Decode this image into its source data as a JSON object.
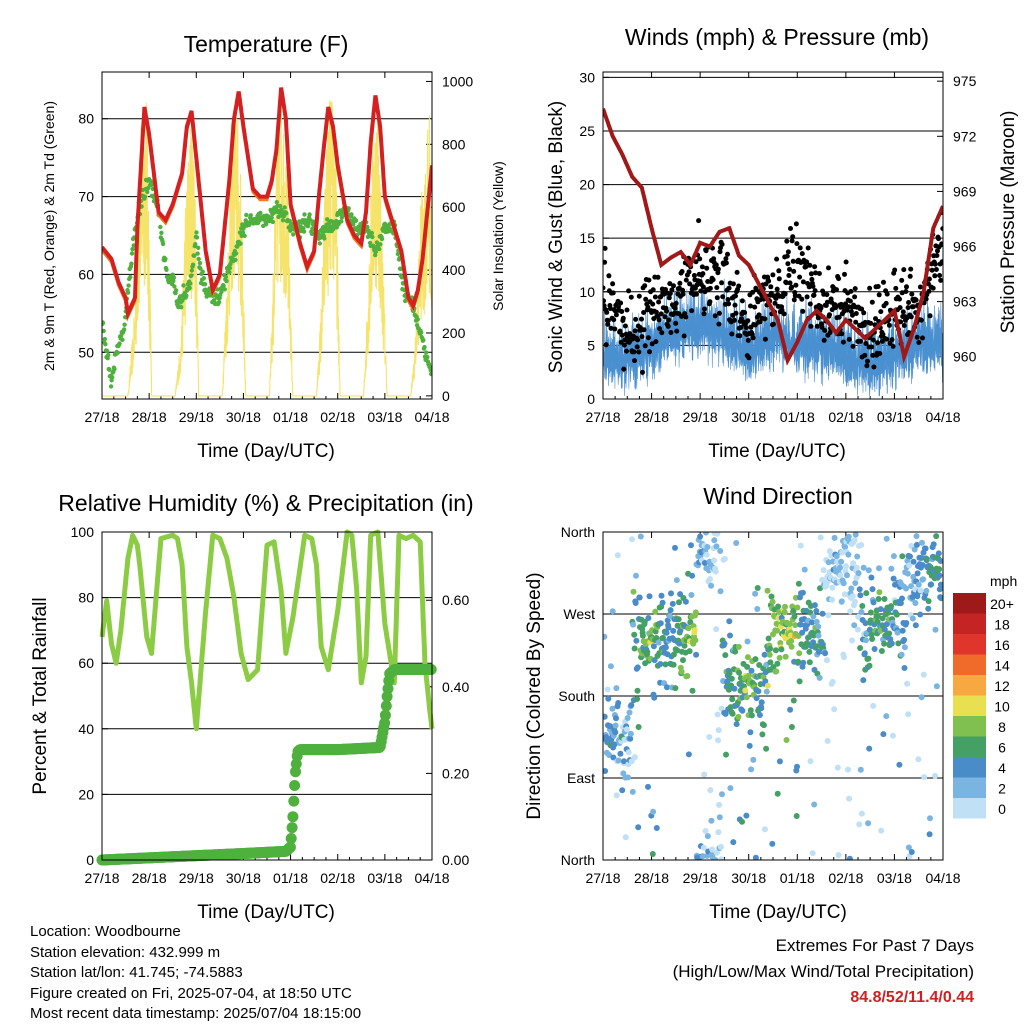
{
  "panels": {
    "temperature": {
      "title": "Temperature (F)",
      "left_label": "2m & 9m T (Red, Orange) & 2m Td (Green)",
      "right_label": "Solar Insolation (Yellow)",
      "x_label": "Time (Day/UTC)"
    },
    "winds": {
      "title": "Winds (mph) & Pressure (mb)",
      "left_label": "Sonic Wind & Gust (Blue, Black)",
      "right_label": "Station Pressure (Maroon)",
      "x_label": "Time (Day/UTC)"
    },
    "humidity": {
      "title": "Relative Humidity (%) & Precipitation (in)",
      "left_label": "Percent & Total Rainfall",
      "x_label": "Time (Day/UTC)"
    },
    "direction": {
      "title": "Wind Direction",
      "left_label": "Direction (Colored By Speed)",
      "x_label": "Time (Day/UTC)",
      "legend_title": "mph"
    }
  },
  "info": {
    "location": "Location: Woodbourne",
    "elevation": "Station elevation: 432.999 m",
    "latlon": "Station lat/lon: 41.745; -74.5883",
    "created": "Figure created on Fri, 2025-07-04, at 18:50 UTC",
    "timestamp": "Most recent data timestamp: 2025/07/04 18:15:00"
  },
  "extremes": {
    "line1": "Extremes For Past 7 Days",
    "line2": "(High/Low/Max Wind/Total Precipitation)",
    "values": "84.8/52/11.4/0.44"
  },
  "colors": {
    "temp": "#d42020",
    "temp9m": "#f07a1e",
    "dewpoint": "#4fb03e",
    "solar": "#f5e36a",
    "gust": "#000000",
    "wind": "#4a90d0",
    "pressure": "#a01818",
    "rh": "#8ccc44",
    "precip": "#4fb03e"
  },
  "chart_data": [
    {
      "type": "line",
      "title": "Temperature (F)",
      "x_ticks": [
        "27/18",
        "28/18",
        "29/18",
        "30/18",
        "01/18",
        "02/18",
        "03/18",
        "04/18"
      ],
      "x_range_days": [
        0,
        7
      ],
      "y_left": {
        "label": "2m & 9m T (Red, Orange) & 2m Td (Green)",
        "ylim": [
          44,
          86
        ],
        "ticks": [
          50,
          60,
          70,
          80
        ]
      },
      "y_right": {
        "label": "Solar Insolation (Yellow)",
        "ylim": [
          -10,
          1030
        ],
        "ticks": [
          0,
          200,
          400,
          600,
          800,
          1000
        ]
      },
      "series": [
        {
          "key": "temp",
          "x": [
            0,
            0.2,
            0.35,
            0.5,
            0.55,
            0.7,
            0.75,
            0.9,
            1.0,
            1.2,
            1.35,
            1.5,
            1.6,
            1.7,
            1.8,
            1.9,
            2.0,
            2.2,
            2.35,
            2.5,
            2.6,
            2.7,
            2.8,
            2.9,
            3.0,
            3.2,
            3.35,
            3.5,
            3.6,
            3.7,
            3.8,
            3.9,
            4.0,
            4.2,
            4.35,
            4.5,
            4.6,
            4.7,
            4.8,
            4.9,
            5.0,
            5.2,
            5.35,
            5.5,
            5.6,
            5.7,
            5.8,
            5.9,
            6.0,
            6.2,
            6.35,
            6.5,
            6.6,
            6.7,
            6.8,
            6.9,
            7.0
          ],
          "values": [
            63.5,
            62,
            59,
            57,
            55,
            57,
            66,
            81.5,
            78,
            68,
            67,
            69,
            71,
            73,
            79,
            81,
            75,
            63,
            58,
            60,
            66,
            72,
            80,
            83.5,
            79,
            71,
            70,
            70,
            72,
            76,
            84,
            80,
            69,
            64,
            61,
            63,
            70,
            76,
            81.5,
            79,
            74,
            67,
            65,
            64,
            68,
            77,
            83,
            79,
            70,
            66,
            63,
            57,
            56,
            58,
            62,
            68,
            74
          ]
        },
        {
          "key": "dewpoint",
          "x": [
            0,
            0.1,
            0.2,
            0.3,
            0.4,
            0.5,
            0.55,
            0.65,
            0.75,
            0.85,
            0.95,
            1.0,
            1.1,
            1.2,
            1.3,
            1.4,
            1.5,
            1.6,
            1.7,
            1.8,
            1.9,
            2.0,
            2.1,
            2.2,
            2.35,
            2.5,
            2.7,
            2.9,
            3.0,
            3.1,
            3.3,
            3.5,
            3.7,
            3.9,
            4.0,
            4.2,
            4.4,
            4.5,
            4.6,
            4.8,
            5.0,
            5.2,
            5.4,
            5.6,
            5.8,
            6.0,
            6.2,
            6.3,
            6.4,
            6.5,
            6.6,
            6.8,
            6.9,
            7.0
          ],
          "values": [
            54,
            50,
            46,
            50,
            52,
            54,
            58,
            63,
            67,
            70,
            71,
            72,
            70,
            68,
            63,
            59,
            60,
            56,
            57,
            58,
            60,
            65,
            60,
            58,
            57,
            57,
            61,
            64,
            66,
            67,
            67,
            67,
            68,
            68,
            66,
            66,
            67,
            66,
            65,
            66,
            67,
            68,
            66,
            66,
            63,
            66,
            66,
            62,
            58,
            57,
            56,
            51,
            49,
            48
          ]
        },
        {
          "key": "solar",
          "x": [
            0.55,
            0.7,
            0.78,
            0.86,
            0.95,
            1.05,
            1.55,
            1.68,
            1.76,
            1.85,
            1.95,
            2.05,
            2.55,
            2.65,
            2.75,
            2.85,
            2.95,
            3.05,
            3.55,
            3.65,
            3.75,
            3.85,
            3.95,
            4.05,
            4.55,
            4.65,
            4.75,
            4.85,
            4.95,
            5.05,
            5.55,
            5.65,
            5.75,
            5.85,
            5.95,
            6.05,
            6.55,
            6.65,
            6.75,
            6.85,
            6.95,
            7.0
          ],
          "values": [
            0,
            300,
            700,
            960,
            980,
            100,
            0,
            200,
            600,
            850,
            900,
            50,
            0,
            400,
            900,
            980,
            700,
            0,
            0,
            500,
            1000,
            950,
            600,
            0,
            0,
            300,
            800,
            990,
            900,
            0,
            0,
            400,
            880,
            980,
            500,
            0,
            0,
            200,
            600,
            750,
            930,
            400
          ]
        }
      ]
    },
    {
      "type": "line",
      "title": "Winds (mph) & Pressure (mb)",
      "x_ticks": [
        "27/18",
        "28/18",
        "29/18",
        "30/18",
        "01/18",
        "02/18",
        "03/18",
        "04/18"
      ],
      "x_range_days": [
        0,
        7
      ],
      "y_left": {
        "label": "Sonic Wind & Gust (Blue, Black)",
        "ylim": [
          0,
          30.5
        ],
        "ticks": [
          0,
          5,
          10,
          15,
          20,
          25,
          30
        ]
      },
      "y_right": {
        "label": "Station Pressure (Maroon)",
        "ylim": [
          957.7,
          975.5
        ],
        "ticks": [
          960,
          963,
          966,
          969,
          972,
          975
        ]
      },
      "series": [
        {
          "key": "wind_mean",
          "x": [
            0,
            0.5,
            1.0,
            1.5,
            2.0,
            2.5,
            3.0,
            3.5,
            4.0,
            4.5,
            5.0,
            5.5,
            6.0,
            6.5,
            7.0
          ],
          "values": [
            4,
            3.5,
            5,
            6,
            7,
            6,
            4,
            6,
            5,
            5,
            4,
            3,
            4,
            5,
            5
          ]
        },
        {
          "key": "gust_mean",
          "x": [
            0,
            0.5,
            1.0,
            1.5,
            2.0,
            2.5,
            3.0,
            3.5,
            4.0,
            4.5,
            5.0,
            5.5,
            6.0,
            6.5,
            7.0
          ],
          "values": [
            10,
            6,
            8,
            9,
            12,
            11,
            7,
            10,
            13,
            8,
            9,
            6,
            9,
            8,
            14
          ]
        },
        {
          "key": "pressure",
          "x": [
            0,
            0.2,
            0.4,
            0.6,
            0.8,
            1.0,
            1.2,
            1.4,
            1.6,
            1.8,
            2.0,
            2.2,
            2.4,
            2.6,
            2.8,
            3.0,
            3.2,
            3.4,
            3.6,
            3.8,
            4.0,
            4.2,
            4.4,
            4.6,
            4.8,
            5.0,
            5.2,
            5.4,
            5.6,
            5.8,
            6.0,
            6.2,
            6.4,
            6.6,
            6.8,
            7.0
          ],
          "values": [
            973.5,
            972,
            971,
            969.8,
            969.2,
            967,
            965,
            965.4,
            965.7,
            965,
            966.2,
            966,
            966.8,
            967,
            965.5,
            965,
            964,
            963,
            962,
            959.8,
            960.8,
            962,
            962.5,
            962,
            961.3,
            962,
            961.5,
            961,
            961.5,
            962,
            962.5,
            960,
            961.5,
            963.5,
            967,
            968.2
          ]
        }
      ]
    },
    {
      "type": "line",
      "title": "Relative Humidity (%) & Precipitation (in)",
      "x_ticks": [
        "27/18",
        "28/18",
        "29/18",
        "30/18",
        "01/18",
        "02/18",
        "03/18",
        "04/18"
      ],
      "x_range_days": [
        0,
        7
      ],
      "y_left": {
        "label": "Percent & Total Rainfall",
        "ylim": [
          0,
          100
        ],
        "ticks": [
          0,
          20,
          40,
          60,
          80,
          100
        ]
      },
      "y_right": {
        "ylim": [
          0,
          0.7576
        ],
        "ticks": [
          "0.00",
          "0.20",
          "0.40",
          "0.60"
        ]
      },
      "series": [
        {
          "key": "rh",
          "x": [
            0,
            0.1,
            0.2,
            0.3,
            0.4,
            0.55,
            0.65,
            0.75,
            0.8,
            0.95,
            1.05,
            1.25,
            1.5,
            1.6,
            1.7,
            1.8,
            1.9,
            2.0,
            2.2,
            2.35,
            2.5,
            2.65,
            2.8,
            2.95,
            3.1,
            3.3,
            3.5,
            3.65,
            3.8,
            3.9,
            4.05,
            4.3,
            4.45,
            4.55,
            4.65,
            4.8,
            5.0,
            5.2,
            5.3,
            5.4,
            5.5,
            5.6,
            5.7,
            5.85,
            6.0,
            6.2,
            6.3,
            6.45,
            6.6,
            6.75,
            6.85,
            6.95,
            7.0
          ],
          "values": [
            68,
            79,
            66,
            60,
            70,
            92,
            99,
            96,
            90,
            68,
            63,
            98,
            99,
            98,
            90,
            65,
            54,
            40,
            76,
            99,
            98,
            92,
            80,
            63,
            55,
            58,
            96,
            97,
            82,
            63,
            74,
            99,
            98,
            90,
            65,
            58,
            76,
            100,
            99,
            83,
            54,
            62,
            99,
            100,
            72,
            54,
            99,
            98,
            99,
            97,
            60,
            46,
            40
          ]
        },
        {
          "key": "precip",
          "x": [
            0,
            1.0,
            2.0,
            3.0,
            3.9,
            4.0,
            4.05,
            4.1,
            4.15,
            4.2,
            5.0,
            5.9,
            6.0,
            6.05,
            6.1,
            6.2,
            7.0
          ],
          "values": [
            0,
            0.005,
            0.01,
            0.015,
            0.02,
            0.03,
            0.1,
            0.2,
            0.25,
            0.255,
            0.255,
            0.26,
            0.32,
            0.38,
            0.43,
            0.44,
            0.44
          ]
        }
      ]
    },
    {
      "type": "scatter",
      "title": "Wind Direction",
      "x_ticks": [
        "27/18",
        "28/18",
        "29/18",
        "30/18",
        "01/18",
        "02/18",
        "03/18",
        "04/18"
      ],
      "x_range_days": [
        0,
        7
      ],
      "y_left": {
        "label": "Direction (Colored By Speed)",
        "ylim": [
          0,
          360
        ],
        "ticks": [
          "North",
          "East",
          "South",
          "West",
          "North"
        ],
        "tick_values": [
          0,
          90,
          180,
          270,
          360
        ]
      },
      "legend": {
        "title": "mph",
        "labels": [
          "20+",
          "18",
          "16",
          "14",
          "12",
          "10",
          "8",
          "6",
          "4",
          "2",
          "0"
        ],
        "colors": [
          "#9e1a1a",
          "#c42424",
          "#e0352a",
          "#f06a2a",
          "#f8a840",
          "#e8e050",
          "#80c050",
          "#45a065",
          "#4a8cc8",
          "#7ab4e0",
          "#bfe0f5"
        ]
      },
      "clusters": [
        {
          "x": 0.2,
          "dir": 135,
          "speed": 4
        },
        {
          "x": 1.0,
          "dir": 240,
          "speed": 7
        },
        {
          "x": 1.9,
          "dir": 250,
          "speed": 8
        },
        {
          "x": 1.95,
          "dir": 345,
          "speed": 3
        },
        {
          "x": 2.95,
          "dir": 190,
          "speed": 7
        },
        {
          "x": 3.8,
          "dir": 255,
          "speed": 9
        },
        {
          "x": 4.3,
          "dir": 250,
          "speed": 5
        },
        {
          "x": 4.85,
          "dir": 320,
          "speed": 2
        },
        {
          "x": 5.7,
          "dir": 260,
          "speed": 6
        },
        {
          "x": 6.8,
          "dir": 320,
          "speed": 5
        }
      ]
    }
  ]
}
